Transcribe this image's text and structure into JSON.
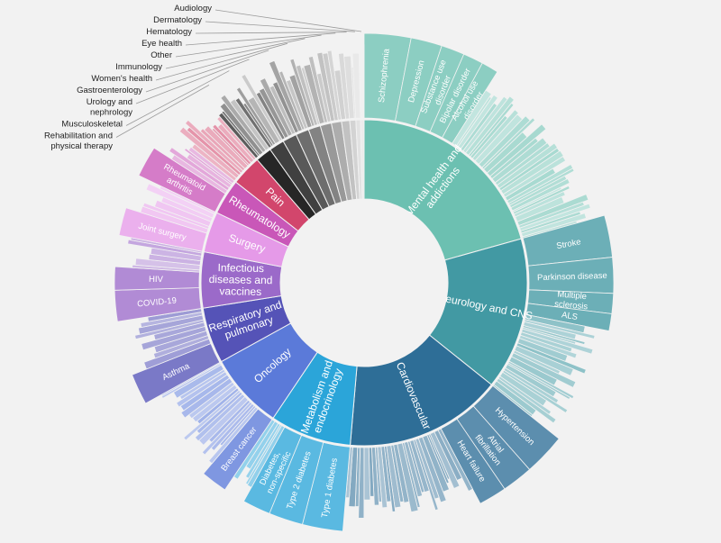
{
  "chart_data": {
    "type": "sunburst",
    "title": "",
    "categories": [
      {
        "name": "Mental health and addictions",
        "value": 20.5,
        "color": "#6cc0b1",
        "children": [
          {
            "name": "Schizophrenia",
            "value": 3.0
          },
          {
            "name": "Depression",
            "value": 2.0
          },
          {
            "name": "Substance use disorder",
            "value": 1.5
          },
          {
            "name": "Bipolar disorder",
            "value": 1.3
          },
          {
            "name": "Alcohol use disorder",
            "value": 1.1
          }
        ]
      },
      {
        "name": "Neurology and CNS",
        "value": 15.0,
        "color": "#4299a3",
        "children": [
          {
            "name": "Stroke",
            "value": 2.7
          },
          {
            "name": "Parkinson disease",
            "value": 2.3
          },
          {
            "name": "Multiple sclerosis",
            "value": 1.3
          },
          {
            "name": "ALS",
            "value": 1.1
          }
        ]
      },
      {
        "name": "Cardiovascular",
        "value": 15.5,
        "color": "#2e6e97",
        "children": [
          {
            "name": "Hypertension",
            "value": 2.7
          },
          {
            "name": "Atrial fibrillation",
            "value": 2.0
          },
          {
            "name": "Heart failure",
            "value": 1.8
          }
        ]
      },
      {
        "name": "Metabolism and endocrinology",
        "value": 8.0,
        "color": "#2ba5d9",
        "children": [
          {
            "name": "Type 1 diabetes",
            "value": 2.6
          },
          {
            "name": "Type 2 diabetes",
            "value": 2.2
          },
          {
            "name": "Diabetes, non-specific",
            "value": 1.8
          }
        ]
      },
      {
        "name": "Oncology",
        "value": 7.5,
        "color": "#5b7ad9",
        "children": [
          {
            "name": "Breast cancer",
            "value": 1.7
          }
        ]
      },
      {
        "name": "Respiratory and pulmonary",
        "value": 5.5,
        "color": "#5553b7",
        "children": [
          {
            "name": "Asthma",
            "value": 2.0
          }
        ]
      },
      {
        "name": "Infectious diseases and vaccines",
        "value": 5.5,
        "color": "#9b6ac9",
        "children": [
          {
            "name": "COVID-19",
            "value": 2.0
          },
          {
            "name": "HIV",
            "value": 1.5
          }
        ]
      },
      {
        "name": "Surgery",
        "value": 4.0,
        "color": "#e59ae8",
        "children": [
          {
            "name": "Joint surgery",
            "value": 1.8
          }
        ]
      },
      {
        "name": "Rheumatology",
        "value": 3.5,
        "color": "#c957b8",
        "children": [
          {
            "name": "Rheumatoid arthritis",
            "value": 2.0
          }
        ]
      },
      {
        "name": "Pain",
        "value": 3.0,
        "color": "#d2466c",
        "children": []
      },
      {
        "name": "Rehabilitation and physical therapy",
        "value": 1.6,
        "color": "#262626",
        "children": []
      },
      {
        "name": "Musculoskeletal",
        "value": 1.5,
        "color": "#404040",
        "children": []
      },
      {
        "name": "Urology and nephrology",
        "value": 1.4,
        "color": "#595959",
        "children": []
      },
      {
        "name": "Gastroenterology",
        "value": 1.3,
        "color": "#6e6e6e",
        "children": []
      },
      {
        "name": "Women's health",
        "value": 1.2,
        "color": "#838383",
        "children": []
      },
      {
        "name": "Immunology",
        "value": 1.1,
        "color": "#999999",
        "children": []
      },
      {
        "name": "Other",
        "value": 1.0,
        "color": "#adadad",
        "children": []
      },
      {
        "name": "Eye health",
        "value": 0.8,
        "color": "#c2c2c2",
        "children": []
      },
      {
        "name": "Hematology",
        "value": 0.6,
        "color": "#d3d3d3",
        "children": []
      },
      {
        "name": "Dermatology",
        "value": 0.45,
        "color": "#e2e2e2",
        "children": []
      },
      {
        "name": "Audiology",
        "value": 0.35,
        "color": "#ececec",
        "children": []
      }
    ]
  }
}
